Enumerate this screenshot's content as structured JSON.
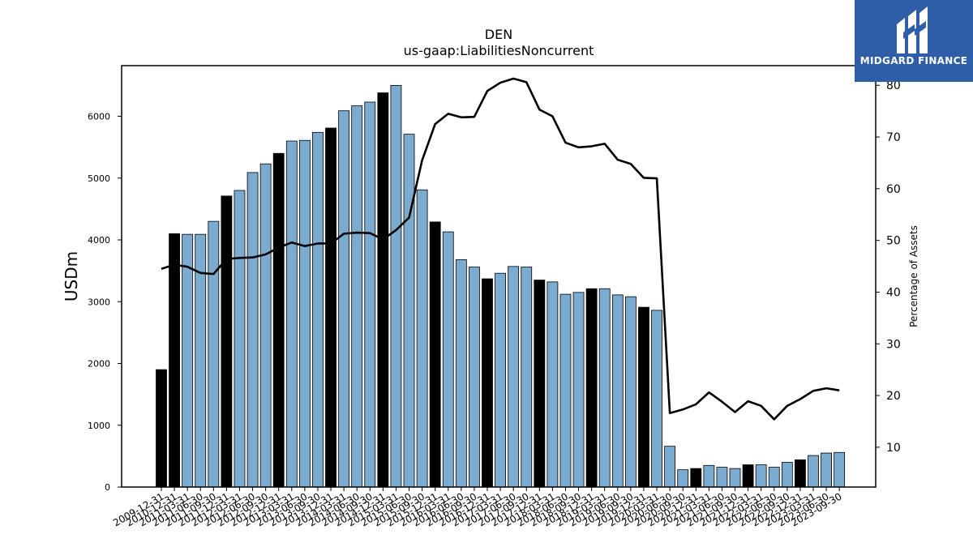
{
  "logo": {
    "text": "MIDGARD FINANCE",
    "icon": "midgard-logo-icon",
    "background": "#2f5ea8"
  },
  "colors": {
    "bar_fill": "#7bacd0",
    "bar_highlight": "#000000",
    "line": "#000000",
    "axis": "#000000"
  },
  "chart_data": {
    "type": "bar",
    "title": "DEN",
    "subtitle": "us-gaap:LiabilitiesNoncurrent",
    "ylabel": "USDm",
    "y2label": "Percentage of Assets",
    "ylim": [
      0,
      6820
    ],
    "y2lim": [
      2.3,
      83.8
    ],
    "yticks": [
      0,
      1000,
      2000,
      3000,
      4000,
      5000,
      6000
    ],
    "y2ticks": [
      10,
      20,
      30,
      40,
      50,
      60,
      70,
      80
    ],
    "categories": [
      "2009-12-31",
      "2010-12-31",
      "2011-03-31",
      "2011-06-30",
      "2011-09-30",
      "2011-12-31",
      "2012-03-31",
      "2012-06-30",
      "2012-09-30",
      "2012-12-31",
      "2013-03-31",
      "2013-06-30",
      "2013-09-30",
      "2013-12-31",
      "2014-03-31",
      "2014-06-30",
      "2014-09-30",
      "2014-12-31",
      "2015-03-31",
      "2015-06-30",
      "2015-09-30",
      "2015-12-31",
      "2016-03-31",
      "2016-06-30",
      "2016-09-30",
      "2016-12-31",
      "2017-03-31",
      "2017-06-30",
      "2017-09-30",
      "2017-12-31",
      "2018-03-31",
      "2018-06-30",
      "2018-09-30",
      "2018-12-31",
      "2019-03-31",
      "2019-06-30",
      "2019-09-30",
      "2019-12-31",
      "2020-03-31",
      "2020-06-30",
      "2020-09-30",
      "2020-12-31",
      "2021-03-31",
      "2021-06-30",
      "2021-09-30",
      "2021-12-31",
      "2022-03-31",
      "2022-06-30",
      "2022-09-30",
      "2022-12-31",
      "2023-03-31",
      "2023-06-30",
      "2023-09-30"
    ],
    "series": [
      {
        "kind": "bar",
        "values": [
          1900,
          4100,
          4090,
          4090,
          4300,
          4710,
          4800,
          5090,
          5230,
          5400,
          5600,
          5610,
          5740,
          5810,
          6090,
          6170,
          6230,
          6380,
          6500,
          5710,
          4810,
          4290,
          4130,
          3680,
          3560,
          3370,
          3460,
          3570,
          3560,
          3350,
          3320,
          3120,
          3150,
          3210,
          3210,
          3110,
          3080,
          2910,
          2860,
          660,
          280,
          300,
          350,
          320,
          300,
          360,
          360,
          320,
          400,
          440,
          510,
          550,
          560
        ]
      },
      {
        "kind": "line",
        "axis": "right",
        "values": [
          44.5,
          45.3,
          44.9,
          43.7,
          43.5,
          46.4,
          46.6,
          46.7,
          47.3,
          48.6,
          49.6,
          48.9,
          49.4,
          49.4,
          51.3,
          51.5,
          51.4,
          50.2,
          52.0,
          54.4,
          65.5,
          72.5,
          74.5,
          73.8,
          73.9,
          78.9,
          80.5,
          81.3,
          80.6,
          75.3,
          74.0,
          68.9,
          68.0,
          68.2,
          68.7,
          65.6,
          64.8,
          62.1,
          62.0,
          16.6,
          17.3,
          18.3,
          20.6,
          18.8,
          16.8,
          18.9,
          18.0,
          15.4,
          18.0,
          19.3,
          20.9,
          21.4,
          21.0
        ]
      }
    ],
    "highlight_categories": [
      "2009-12-31",
      "2010-12-31",
      "2011-12-31",
      "2012-12-31",
      "2013-12-31",
      "2014-12-31",
      "2015-12-31",
      "2016-12-31",
      "2017-12-31",
      "2018-12-31",
      "2019-12-31",
      "2020-12-31",
      "2021-12-31",
      "2022-12-31"
    ]
  }
}
